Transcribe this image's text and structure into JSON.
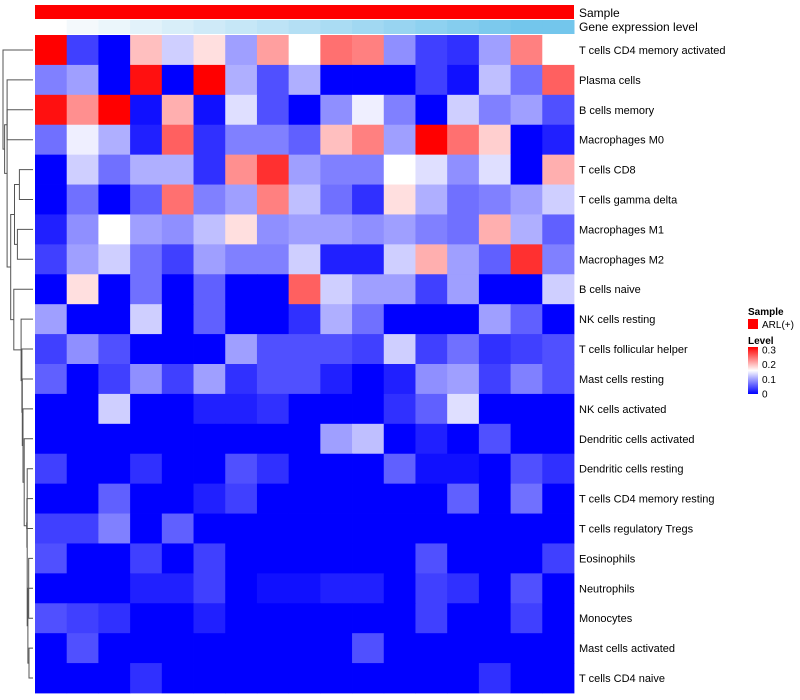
{
  "chart_data": {
    "type": "heatmap",
    "annotations": {
      "sample_track_label": "Sample",
      "sample_track_color": "#ff0000",
      "expression_track_label": "Gene expression level",
      "expression_track_colors": [
        "#ffffff",
        "#f4f9fc",
        "#ebf6fb",
        "#e2f2fa",
        "#d8eef9",
        "#cfeaf8",
        "#c6e7f7",
        "#bde3f6",
        "#b4dff4",
        "#aadcf3",
        "#a1d8f2",
        "#98d4f1",
        "#8ed1f0",
        "#85cdee",
        "#7cc9ed",
        "#73c6ec"
      ]
    },
    "legend": {
      "sample_title": "Sample",
      "sample_entry": "ARL(+)",
      "level_title": "Level",
      "level_ticks": [
        "0.3",
        "0.2",
        "0.1",
        "0"
      ],
      "level_tick_values": [
        0.3,
        0.2,
        0.1,
        0.0
      ],
      "level_range": [
        0,
        0.32
      ],
      "color_low": "#0000ff",
      "color_mid": "#ffffff",
      "color_high": "#ff0000"
    },
    "rows": [
      "T cells CD4 memory activated",
      "Plasma cells",
      "B cells memory",
      "Macrophages M0",
      "T cells CD8",
      "T cells gamma delta",
      "Macrophages M1",
      "Macrophages M2",
      "B cells naive",
      "NK cells resting",
      "T cells follicular helper",
      "Mast cells resting",
      "NK cells activated",
      "Dendritic cells activated",
      "Dendritic cells resting",
      "T cells CD4 memory resting",
      "T cells regulatory  Tregs",
      "Eosinophils",
      "Neutrophils",
      "Monocytes",
      "Mast cells activated",
      "T cells CD4 naive"
    ],
    "values": [
      [
        0.32,
        0.04,
        0.0,
        0.2,
        0.13,
        0.18,
        0.1,
        0.22,
        0.16,
        0.25,
        0.24,
        0.09,
        0.04,
        0.03,
        0.1,
        0.24,
        0.16
      ],
      [
        0.08,
        0.1,
        0.0,
        0.31,
        0.0,
        0.32,
        0.11,
        0.05,
        0.11,
        0.0,
        0.0,
        0.0,
        0.04,
        0.01,
        0.12,
        0.07,
        0.26
      ],
      [
        0.31,
        0.23,
        0.32,
        0.01,
        0.21,
        0.01,
        0.14,
        0.05,
        0.0,
        0.09,
        0.15,
        0.08,
        0.0,
        0.13,
        0.08,
        0.1,
        0.05
      ],
      [
        0.07,
        0.15,
        0.11,
        0.02,
        0.26,
        0.03,
        0.08,
        0.08,
        0.06,
        0.2,
        0.24,
        0.1,
        0.32,
        0.25,
        0.19,
        0.0,
        0.02
      ],
      [
        0.0,
        0.13,
        0.07,
        0.11,
        0.11,
        0.03,
        0.23,
        0.29,
        0.1,
        0.08,
        0.08,
        0.16,
        0.14,
        0.09,
        0.14,
        0.0,
        0.21
      ],
      [
        0.0,
        0.07,
        0.0,
        0.06,
        0.25,
        0.08,
        0.1,
        0.24,
        0.12,
        0.07,
        0.03,
        0.18,
        0.11,
        0.07,
        0.08,
        0.1,
        0.13
      ],
      [
        0.02,
        0.09,
        0.16,
        0.1,
        0.09,
        0.12,
        0.18,
        0.09,
        0.1,
        0.1,
        0.09,
        0.1,
        0.08,
        0.07,
        0.21,
        0.11,
        0.06
      ],
      [
        0.04,
        0.1,
        0.13,
        0.07,
        0.04,
        0.1,
        0.08,
        0.08,
        0.13,
        0.02,
        0.02,
        0.13,
        0.21,
        0.1,
        0.06,
        0.29,
        0.08
      ],
      [
        0.0,
        0.18,
        0.0,
        0.07,
        0.0,
        0.06,
        0.0,
        0.0,
        0.26,
        0.13,
        0.1,
        0.1,
        0.04,
        0.1,
        0.0,
        0.0,
        0.13
      ],
      [
        0.1,
        0.0,
        0.0,
        0.13,
        0.0,
        0.06,
        0.0,
        0.0,
        0.03,
        0.11,
        0.07,
        0.0,
        0.0,
        0.0,
        0.1,
        0.06,
        0.0
      ],
      [
        0.04,
        0.09,
        0.05,
        0.0,
        0.0,
        0.0,
        0.1,
        0.05,
        0.05,
        0.05,
        0.04,
        0.13,
        0.04,
        0.07,
        0.03,
        0.04,
        0.05
      ],
      [
        0.06,
        0.0,
        0.04,
        0.09,
        0.04,
        0.1,
        0.03,
        0.05,
        0.05,
        0.02,
        0.0,
        0.02,
        0.09,
        0.1,
        0.04,
        0.08,
        0.05
      ],
      [
        0.0,
        0.0,
        0.13,
        0.0,
        0.0,
        0.02,
        0.02,
        0.03,
        0.0,
        0.0,
        0.0,
        0.03,
        0.06,
        0.14,
        0.0,
        0.0,
        0.0
      ],
      [
        0.0,
        0.0,
        0.0,
        0.0,
        0.0,
        0.0,
        0.0,
        0.0,
        0.0,
        0.1,
        0.12,
        0.0,
        0.02,
        0.0,
        0.05,
        0.0,
        0.0
      ],
      [
        0.04,
        0.0,
        0.0,
        0.03,
        0.0,
        0.0,
        0.05,
        0.03,
        0.0,
        0.0,
        0.0,
        0.06,
        0.01,
        0.01,
        0.0,
        0.05,
        0.03
      ],
      [
        0.0,
        0.0,
        0.06,
        0.0,
        0.0,
        0.02,
        0.04,
        0.0,
        0.0,
        0.0,
        0.0,
        0.0,
        0.0,
        0.06,
        0.0,
        0.07,
        0.0
      ],
      [
        0.04,
        0.04,
        0.08,
        0.0,
        0.06,
        0.0,
        0.0,
        0.0,
        0.0,
        0.0,
        0.0,
        0.0,
        0.0,
        0.0,
        0.0,
        0.0,
        0.0
      ],
      [
        0.05,
        0.0,
        0.0,
        0.04,
        0.0,
        0.04,
        0.0,
        0.0,
        0.0,
        0.0,
        0.0,
        0.0,
        0.05,
        0.0,
        0.0,
        0.0,
        0.04
      ],
      [
        0.0,
        0.0,
        0.0,
        0.02,
        0.02,
        0.04,
        0.0,
        0.01,
        0.01,
        0.02,
        0.02,
        0.0,
        0.04,
        0.03,
        0.0,
        0.05,
        0.0
      ],
      [
        0.05,
        0.04,
        0.03,
        0.0,
        0.0,
        0.02,
        0.0,
        0.0,
        0.0,
        0.0,
        0.0,
        0.0,
        0.04,
        0.0,
        0.0,
        0.04,
        0.0
      ],
      [
        0.0,
        0.05,
        0.0,
        0.0,
        0.0,
        0.0,
        0.0,
        0.0,
        0.0,
        0.0,
        0.05,
        0.0,
        0.0,
        0.0,
        0.0,
        0.0,
        0.0
      ],
      [
        0.0,
        0.0,
        0.0,
        0.03,
        0.0,
        0.0,
        0.0,
        0.0,
        0.0,
        0.0,
        0.0,
        0.0,
        0.0,
        0.0,
        0.03,
        0.0,
        0.0
      ]
    ]
  }
}
